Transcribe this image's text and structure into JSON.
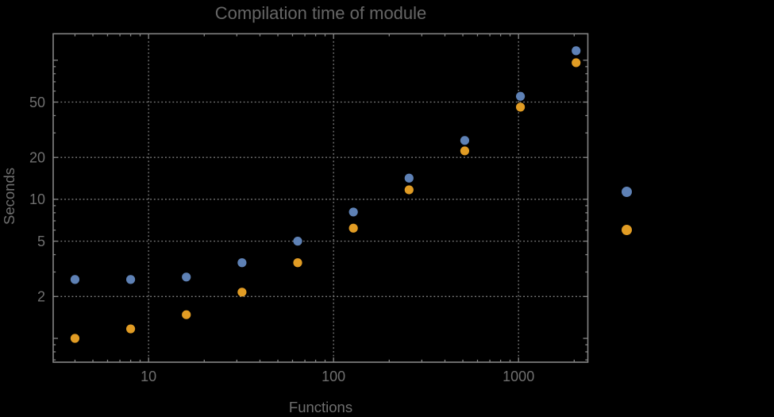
{
  "colors": {
    "background": "#000000",
    "title_text": "#666666",
    "label_text": "#6f6f6f",
    "frame": "#848484",
    "grid": "#7f7f7f",
    "series_blue": "#5e81b5",
    "series_orange": "#e19c24"
  },
  "chart_data": {
    "type": "scatter",
    "title": "Compilation time of module",
    "xlabel": "Functions",
    "ylabel": "Seconds",
    "x_scale": "log",
    "y_scale": "log",
    "xlim": [
      3.05,
      2370
    ],
    "ylim": [
      0.674,
      155
    ],
    "grid_style": "dotted",
    "x_axis": {
      "major": [
        10,
        100,
        1000
      ],
      "labels": [
        "10",
        "100",
        "1000"
      ],
      "minor": [
        4,
        5,
        6,
        7,
        8,
        9,
        20,
        30,
        40,
        50,
        60,
        70,
        80,
        90,
        200,
        300,
        400,
        500,
        600,
        700,
        800,
        900,
        2000
      ],
      "grid": [
        10,
        100,
        1000
      ]
    },
    "y_axis": {
      "major": [
        2,
        5,
        10,
        20,
        50
      ],
      "labels": [
        "2",
        "5",
        "10",
        "20",
        "50"
      ],
      "unlabeled_major": [
        1,
        100
      ],
      "minor": [
        0.7,
        0.8,
        0.9,
        3,
        4,
        6,
        7,
        8,
        9,
        30,
        40,
        60,
        70,
        80,
        90
      ],
      "grid": [
        2,
        5,
        10,
        20,
        50
      ]
    },
    "x": [
      4,
      8,
      16,
      32,
      64,
      128,
      256,
      512,
      1024,
      2048
    ],
    "series": [
      {
        "name": "series_blue",
        "color": "#5e81b5",
        "values": [
          2.65,
          2.65,
          2.76,
          3.5,
          5.0,
          8.1,
          14.2,
          26.5,
          55,
          117
        ]
      },
      {
        "name": "series_orange",
        "color": "#e19c24",
        "values": [
          1.0,
          1.17,
          1.48,
          2.15,
          3.5,
          6.2,
          11.7,
          22.3,
          46,
          96
        ]
      }
    ],
    "legend": {
      "position": "outside-right",
      "labels_visible": false,
      "entries": [
        {
          "marker_color": "#5e81b5",
          "label": ""
        },
        {
          "marker_color": "#e19c24",
          "label": ""
        }
      ]
    }
  }
}
